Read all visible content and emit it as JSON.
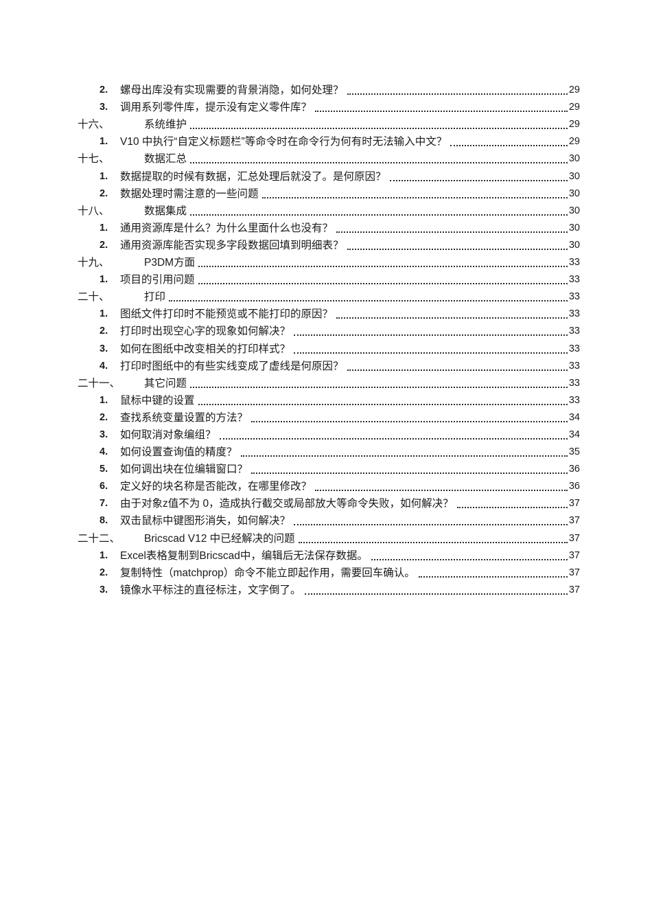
{
  "page": {
    "background": "#ffffff",
    "text_color": "#1a1a1a",
    "leader_color": "#2b2b2b"
  },
  "toc": {
    "entries": [
      {
        "level": 2,
        "num": "2.",
        "title": "螺母出库没有实现需要的背景消隐，如何处理？",
        "page": "29"
      },
      {
        "level": 2,
        "num": "3.",
        "title": "调用系列零件库，提示没有定义零件库？",
        "page": "29"
      },
      {
        "level": 1,
        "num": "十六、",
        "title": "系统维护",
        "page": "29"
      },
      {
        "level": 2,
        "num": "1.",
        "title": "V10 中执行“自定义标题栏”等命令时在命令行为何有时无法输入中文？",
        "page": "29"
      },
      {
        "level": 1,
        "num": "十七、",
        "title": "数据汇总",
        "page": "30"
      },
      {
        "level": 2,
        "num": "1.",
        "title": "数据提取的时候有数据，汇总处理后就没了。是何原因？",
        "page": "30"
      },
      {
        "level": 2,
        "num": "2.",
        "title": "数据处理时需注意的一些问题",
        "page": "30"
      },
      {
        "level": 1,
        "num": "十八、",
        "title": "数据集成",
        "page": "30"
      },
      {
        "level": 2,
        "num": "1.",
        "title": "通用资源库是什么？为什么里面什么也没有？",
        "page": "30"
      },
      {
        "level": 2,
        "num": "2.",
        "title": "通用资源库能否实现多字段数据回填到明细表？",
        "page": "30"
      },
      {
        "level": 1,
        "num": "十九、",
        "title": "P3DM方面",
        "page": "33"
      },
      {
        "level": 2,
        "num": "1.",
        "title": "项目的引用问题",
        "page": "33"
      },
      {
        "level": 1,
        "num": "二十、",
        "title": "打印",
        "page": "33"
      },
      {
        "level": 2,
        "num": "1.",
        "title": "图纸文件打印时不能预览或不能打印的原因？",
        "page": "33"
      },
      {
        "level": 2,
        "num": "2.",
        "title": "打印时出现空心字的现象如何解决？",
        "page": "33"
      },
      {
        "level": 2,
        "num": "3.",
        "title": "如何在图纸中改变相关的打印样式？",
        "page": "33"
      },
      {
        "level": 2,
        "num": "4.",
        "title": "打印时图纸中的有些实线变成了虚线是何原因？",
        "page": "33"
      },
      {
        "level": 1,
        "num": "二十一、",
        "title": "其它问题",
        "page": "33"
      },
      {
        "level": 2,
        "num": "1.",
        "title": "鼠标中键的设置",
        "page": "33"
      },
      {
        "level": 2,
        "num": "2.",
        "title": "查找系统变量设置的方法？",
        "page": "34"
      },
      {
        "level": 2,
        "num": "3.",
        "title": "如何取消对象编组？",
        "page": "34"
      },
      {
        "level": 2,
        "num": "4.",
        "title": "如何设置查询值的精度？",
        "page": "35"
      },
      {
        "level": 2,
        "num": "5.",
        "title": "如何调出块在位编辑窗口？",
        "page": "36"
      },
      {
        "level": 2,
        "num": "6.",
        "title": "定义好的块名称是否能改，在哪里修改？",
        "page": "36"
      },
      {
        "level": 2,
        "num": "7.",
        "title": "由于对象z值不为 0，造成执行截交或局部放大等命令失败，如何解决？",
        "page": "37"
      },
      {
        "level": 2,
        "num": "8.",
        "title": "双击鼠标中键图形消失，如何解决？",
        "page": "37"
      },
      {
        "level": 1,
        "num": "二十二、",
        "title": "Bricscad V12 中已经解决的问题",
        "page": "37"
      },
      {
        "level": 2,
        "num": "1.",
        "title": "Excel表格复制到Bricscad中，编辑后无法保存数据。",
        "page": "37"
      },
      {
        "level": 2,
        "num": "2.",
        "title": "复制特性（matchprop）命令不能立即起作用，需要回车确认。",
        "page": "37"
      },
      {
        "level": 2,
        "num": "3.",
        "title": "镜像水平标注的直径标注，文字倒了。",
        "page": "37"
      }
    ]
  }
}
